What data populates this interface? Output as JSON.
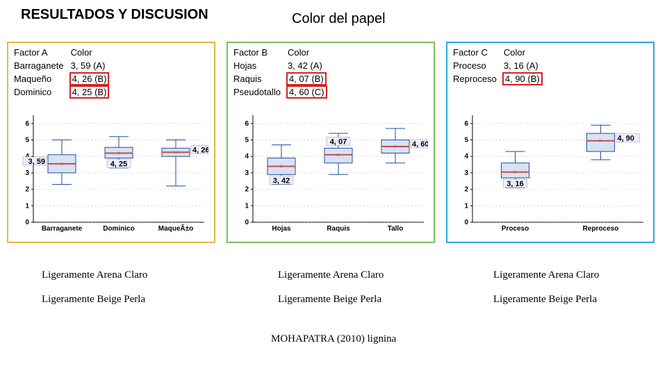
{
  "titles": {
    "left": "RESULTADOS Y DISCUSION",
    "right": "Color del papel"
  },
  "colors": {
    "panel_a_border": "#e2b83d",
    "panel_b_border": "#7fbe5e",
    "panel_c_border": "#2aa7df",
    "redbox": "#d6201f",
    "axis": "#000000",
    "grid_dot": "#888888",
    "box_fill": "#d9e2f3",
    "box_stroke": "#1f4e9c",
    "whisker": "#1f4e9c",
    "median": "#c0504d",
    "label_bg": "#e8ecf8",
    "label_stroke": "#5a6a9c",
    "bg": "#ffffff"
  },
  "factors": {
    "a": {
      "header_factor": "Factor A",
      "header_value": "Color",
      "rows": [
        {
          "label": "Barraganete",
          "value": "3, 59 (A)",
          "red": false
        },
        {
          "label": "Maqueño",
          "value": "4, 26 (B)",
          "red": true
        },
        {
          "label": "Dominico",
          "value": "4, 25 (B)",
          "red": true
        }
      ],
      "chart": {
        "type": "boxplot",
        "ylim": [
          0,
          6.5
        ],
        "yticks": [
          0,
          1,
          2,
          3,
          4,
          5,
          6
        ],
        "x_labels": [
          "Barraganete",
          "Dominico",
          "MaqueÃ±o"
        ],
        "boxes": [
          {
            "x": 0,
            "q1": 3.0,
            "q3": 4.1,
            "med": 3.55,
            "lo": 2.3,
            "hi": 5.0,
            "label": "3, 59",
            "lbl_side": "left"
          },
          {
            "x": 1,
            "q1": 3.9,
            "q3": 4.55,
            "med": 4.2,
            "lo": 3.3,
            "hi": 5.2,
            "label": "4, 25",
            "lbl_side": "below"
          },
          {
            "x": 2,
            "q1": 4.0,
            "q3": 4.5,
            "med": 4.25,
            "lo": 2.2,
            "hi": 5.0,
            "label": "4, 26",
            "lbl_side": "right"
          }
        ],
        "axis_fontsize": 10,
        "background": "#ffffff"
      }
    },
    "b": {
      "header_factor": "Factor B",
      "header_value": "Color",
      "rows": [
        {
          "label": "Hojas",
          "value": "3, 42 (A)",
          "red": false
        },
        {
          "label": "Raquis",
          "value": "4, 07 (B)",
          "red": true
        },
        {
          "label": "Pseudotallo",
          "value": "4, 60 (C)",
          "red": true
        }
      ],
      "chart": {
        "type": "boxplot",
        "ylim": [
          0,
          6.5
        ],
        "yticks": [
          0,
          1,
          2,
          3,
          4,
          5,
          6
        ],
        "x_labels": [
          "Hojas",
          "Raquis",
          "Tallo"
        ],
        "boxes": [
          {
            "x": 0,
            "q1": 2.9,
            "q3": 3.9,
            "med": 3.4,
            "lo": 2.3,
            "hi": 4.7,
            "label": "3, 42",
            "lbl_side": "below"
          },
          {
            "x": 1,
            "q1": 3.6,
            "q3": 4.5,
            "med": 4.1,
            "lo": 2.9,
            "hi": 5.4,
            "label": "4, 07",
            "lbl_side": "above"
          },
          {
            "x": 2,
            "q1": 4.2,
            "q3": 5.0,
            "med": 4.6,
            "lo": 3.6,
            "hi": 5.7,
            "label": "4, 60",
            "lbl_side": "right"
          }
        ],
        "axis_fontsize": 10,
        "background": "#ffffff"
      }
    },
    "c": {
      "header_factor": "Factor C",
      "header_value": "Color",
      "rows": [
        {
          "label": "Proceso",
          "value": "3, 16 (A)",
          "red": false
        },
        {
          "label": "Reproceso",
          "value": "4, 90 (B)",
          "red": true
        }
      ],
      "chart": {
        "type": "boxplot",
        "ylim": [
          0,
          6.5
        ],
        "yticks": [
          0,
          1,
          2,
          3,
          4,
          5,
          6
        ],
        "x_labels": [
          "Proceso",
          "Reproceso"
        ],
        "boxes": [
          {
            "x": 0,
            "q1": 2.7,
            "q3": 3.6,
            "med": 3.05,
            "lo": 2.1,
            "hi": 4.3,
            "label": "3, 16",
            "lbl_side": "below"
          },
          {
            "x": 1,
            "q1": 4.3,
            "q3": 5.4,
            "med": 4.95,
            "lo": 3.8,
            "hi": 5.9,
            "label": "4, 90",
            "lbl_side": "right"
          }
        ],
        "axis_fontsize": 10,
        "background": "#ffffff"
      }
    }
  },
  "captions": {
    "line1": "Ligeramente Arena Claro",
    "line2": "Ligeramente Beige Perla"
  },
  "citation": "MOHAPATRA (2010) lignina"
}
